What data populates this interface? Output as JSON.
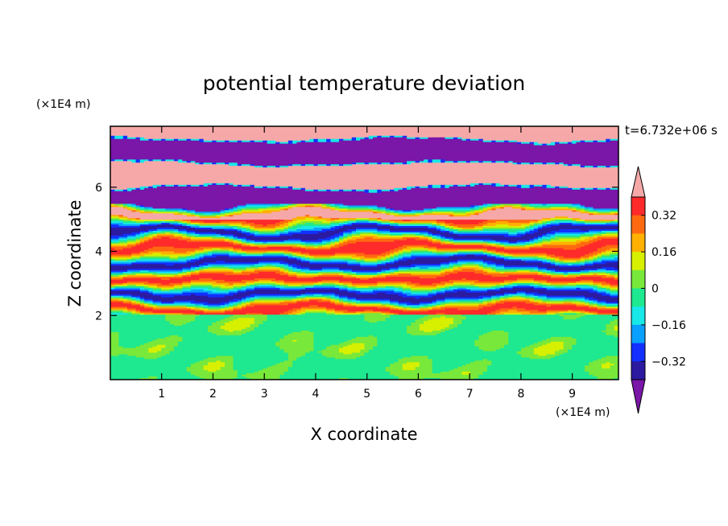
{
  "chart_data": {
    "type": "heatmap",
    "title": "potential temperature deviation",
    "xlabel": "X coordinate",
    "ylabel": "Z coordinate",
    "x_unit": "(×1E4 m)",
    "y_unit": "(×1E4 m)",
    "time_label": "t=6.732e+06 s",
    "xlim": [
      0,
      9.9
    ],
    "ylim": [
      0,
      7.9
    ],
    "x_ticks": [
      "1",
      "2",
      "3",
      "4",
      "5",
      "6",
      "7",
      "8",
      "9"
    ],
    "y_ticks": [
      "2",
      "4",
      "6"
    ],
    "colorbar": {
      "levels": [
        -0.4,
        -0.32,
        -0.24,
        -0.16,
        -0.08,
        0,
        0.08,
        0.16,
        0.24,
        0.32,
        0.4
      ],
      "tick_labels": [
        "0.32",
        "0.16",
        "0",
        "−0.16",
        "−0.32"
      ],
      "colors": [
        "#7a16a8",
        "#2c1aa0",
        "#1230ff",
        "#0aa0ff",
        "#18e8e8",
        "#1ee890",
        "#78e83a",
        "#d6f000",
        "#ffb000",
        "#ff6a10",
        "#ff2a2a",
        "#f6a8a8"
      ]
    },
    "regions": [
      {
        "z_range": [
          0,
          2
        ],
        "description_values": [
          0,
          0.08
        ]
      },
      {
        "z_range": [
          2,
          5.5
        ],
        "description_values": [
          -0.4,
          0.4
        ]
      },
      {
        "z_range": [
          5.5,
          7.9
        ],
        "description_values": [
          -0.4,
          0.4
        ]
      }
    ]
  }
}
